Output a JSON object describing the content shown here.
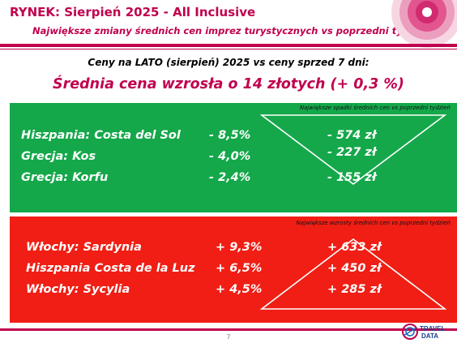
{
  "header": {
    "title": "RYNEK: Sierpień 2025 - All Inclusive",
    "subtitle": "Największe zmiany średnich cen imprez turystycznych vs poprzedni tydzień"
  },
  "summary": {
    "comparison": "Ceny na LATO (sierpień) 2025 vs ceny sprzed 7 dni:",
    "headline": "Średnia cena wzrosła o 14 złotych (+ 0,3 %)"
  },
  "decreases": {
    "note": "Największe spadki średnich cen vs poprzedni tydzień",
    "rows": [
      {
        "destination": "Hiszpania: Costa del Sol",
        "percent": "- 8,5%",
        "amount": "- 574 zł"
      },
      {
        "destination": "Grecja: Kos",
        "percent": "- 4,0%",
        "amount": "- 227 zł"
      },
      {
        "destination": "Grecja: Korfu",
        "percent": "- 2,4%",
        "amount": "- 155 zł"
      }
    ]
  },
  "increases": {
    "note": "Największe wzrosty średnich cen vs poprzedni tydzień",
    "rows": [
      {
        "destination": "Włochy: Sardynia",
        "percent": "+ 9,3%",
        "amount": "+ 633 zł"
      },
      {
        "destination": "Hiszpania Costa de la Luz",
        "percent": "+ 6,5%",
        "amount": "+ 450 zł"
      },
      {
        "destination": "Włochy: Sycylia",
        "percent": "+ 4,5%",
        "amount": "+ 285 zł"
      }
    ]
  },
  "footer": {
    "page_number": "7",
    "logo_text": "TRAVEL DATA"
  },
  "colors": {
    "accent": "#c0004e",
    "decrease_panel": "#14a84a",
    "increase_panel": "#f01e14"
  }
}
